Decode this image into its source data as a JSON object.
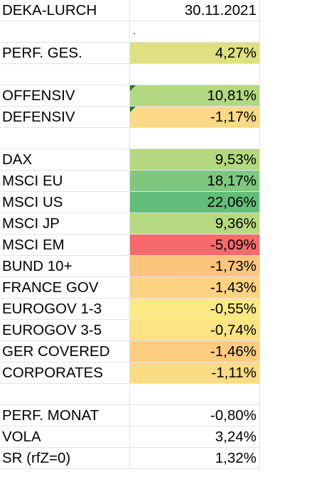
{
  "sheet": {
    "header": {
      "label": "DEKA-LURCH",
      "value": "30.11.2021"
    },
    "dot": ".",
    "perf_total": {
      "label": "PERF. GES.",
      "value": "4,27%",
      "color": "#dfe081"
    },
    "strategies": [
      {
        "label": "OFFENSIV",
        "value": "10,81%",
        "color": "#b2d881",
        "comment": true
      },
      {
        "label": "DEFENSIV",
        "value": "-1,17%",
        "color": "#fcd986",
        "comment": true
      }
    ],
    "indices": [
      {
        "label": "DAX",
        "value": "9,53%",
        "color": "#b4d880"
      },
      {
        "label": "MSCI EU",
        "value": "18,17%",
        "color": "#7ec87d"
      },
      {
        "label": "MSCI US",
        "value": "22,06%",
        "color": "#63be7b"
      },
      {
        "label": "MSCI JP",
        "value": "9,36%",
        "color": "#b5d980"
      },
      {
        "label": "MSCI EM",
        "value": "-5,09%",
        "color": "#f8696b"
      },
      {
        "label": "BUND 10+",
        "value": "-1,73%",
        "color": "#fcc57d"
      },
      {
        "label": "FRANCE GOV",
        "value": "-1,43%",
        "color": "#fcd380"
      },
      {
        "label": "EUROGOV 1-3",
        "value": "-0,55%",
        "color": "#fde984"
      },
      {
        "label": "EUROGOV 3-5",
        "value": "-0,74%",
        "color": "#fde383"
      },
      {
        "label": "GER COVERED",
        "value": "-1,46%",
        "color": "#fccd7f"
      },
      {
        "label": "CORPORATES",
        "value": "-1,11%",
        "color": "#fcdc82"
      }
    ],
    "stats": [
      {
        "label": "PERF. MONAT",
        "value": "-0,80%"
      },
      {
        "label": "VOLA",
        "value": "3,24%"
      },
      {
        "label": "SR (rfZ=0)",
        "value": "1,32%"
      }
    ]
  }
}
